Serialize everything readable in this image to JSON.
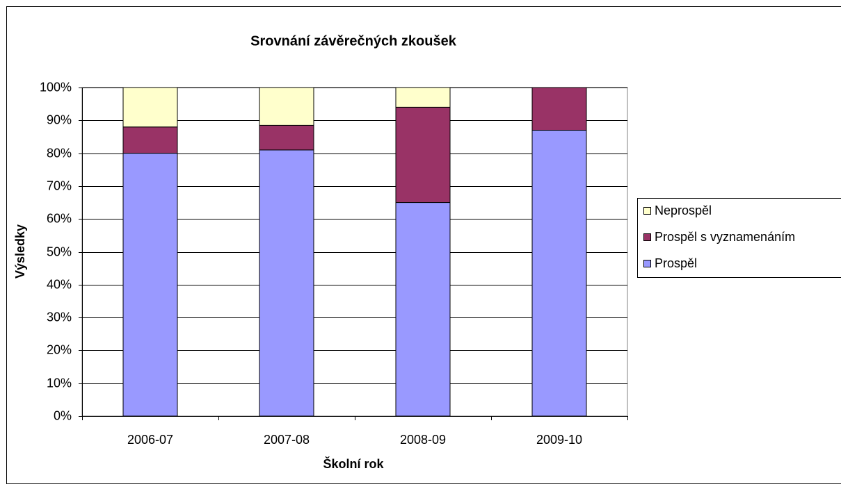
{
  "chart_data": {
    "type": "stacked_bar",
    "title": "Srovnání závěrečných zkoušek",
    "x_label": "Školní rok",
    "y_label": "Výsledky",
    "categories": [
      "2006-07",
      "2007-08",
      "2008-09",
      "2009-10"
    ],
    "series": [
      {
        "name": "Prospěl",
        "color": "#9999ff",
        "values": [
          80,
          81,
          65,
          87
        ]
      },
      {
        "name": "Prospěl s vyznamenáním",
        "color": "#993366",
        "values": [
          8,
          7.5,
          29,
          13
        ]
      },
      {
        "name": "Neprospěl",
        "color": "#ffffcc",
        "values": [
          12,
          11.5,
          6,
          0
        ]
      }
    ],
    "ylim": [
      0,
      100
    ],
    "yticks": [
      {
        "value": 0,
        "label": "0%"
      },
      {
        "value": 10,
        "label": "10%"
      },
      {
        "value": 20,
        "label": "20%"
      },
      {
        "value": 30,
        "label": "30%"
      },
      {
        "value": 40,
        "label": "40%"
      },
      {
        "value": 50,
        "label": "50%"
      },
      {
        "value": 60,
        "label": "60%"
      },
      {
        "value": 70,
        "label": "70%"
      },
      {
        "value": 80,
        "label": "80%"
      },
      {
        "value": 90,
        "label": "90%"
      },
      {
        "value": 100,
        "label": "100%"
      }
    ],
    "grid": true,
    "legend": "right"
  }
}
